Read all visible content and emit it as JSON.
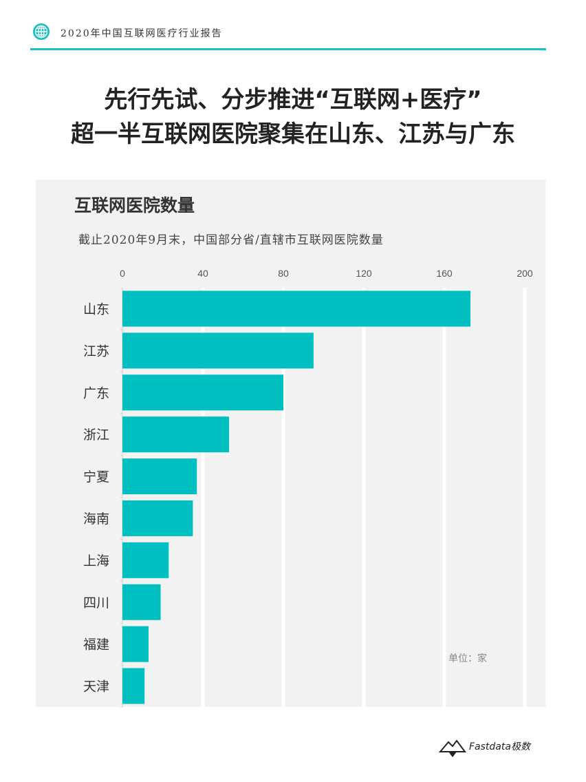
{
  "header": {
    "title": "2020年中国互联网医疗行业报告"
  },
  "headline": {
    "line1": "先行先试、分步推进“互联网+医疗”",
    "line2": "超一半互联网医院聚集在山东、江苏与广东"
  },
  "footer": {
    "brand": "Fastdata极数"
  },
  "colors": {
    "accent": "#17c0c2",
    "bar": "#00bfc1",
    "panel": "#f2f2f2"
  },
  "chart_data": {
    "type": "bar",
    "orientation": "horizontal",
    "title": "互联网医院数量",
    "subtitle": "截止2020年9月末，中国部分省/直辖市互联网医院数量",
    "unit_label": "单位：家",
    "categories": [
      "山东",
      "江苏",
      "广东",
      "浙江",
      "宁夏",
      "海南",
      "上海",
      "四川",
      "福建",
      "天津"
    ],
    "values": [
      173,
      95,
      80,
      53,
      37,
      35,
      23,
      19,
      13,
      11
    ],
    "xlim": [
      0,
      200
    ],
    "xticks": [
      0,
      40,
      80,
      120,
      160,
      200
    ],
    "grid": true,
    "axis_position": "top"
  }
}
